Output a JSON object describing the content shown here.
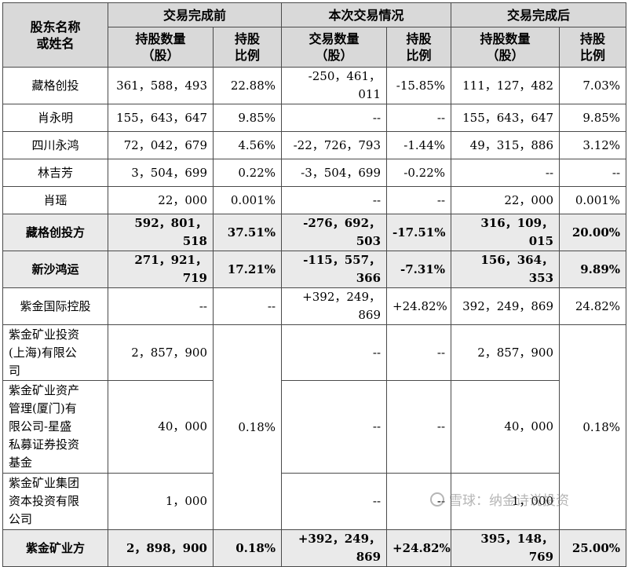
{
  "headers": {
    "name": "股东名称\n或姓名",
    "before": "交易完成前",
    "during": "本次交易情况",
    "after": "交易完成后",
    "before_qty": "持股数量\n（股）",
    "before_ratio": "持股\n比例",
    "during_qty": "交易数量\n（股）",
    "during_ratio": "持股\n比例",
    "after_qty": "持股数量\n（股）",
    "after_ratio": "持股\n比例"
  },
  "rows": [
    {
      "name": "藏格创投",
      "bq": "361，588，493",
      "br": "22.88%",
      "dq": "-250，461，011",
      "dr": "-15.85%",
      "aq": "111，127，482",
      "ar": "7.03%"
    },
    {
      "name": "肖永明",
      "bq": "155，643，647",
      "br": "9.85%",
      "dq": "--",
      "dr": "--",
      "aq": "155，643，647",
      "ar": "9.85%"
    },
    {
      "name": "四川永鸿",
      "bq": "72，042，679",
      "br": "4.56%",
      "dq": "-22，726，793",
      "dr": "-1.44%",
      "aq": "49，315，886",
      "ar": "3.12%"
    },
    {
      "name": "林吉芳",
      "bq": "3，504，699",
      "br": "0.22%",
      "dq": "-3，504，699",
      "dr": "-0.22%",
      "aq": "--",
      "ar": "--"
    },
    {
      "name": "肖瑶",
      "bq": "22，000",
      "br": "0.001%",
      "dq": "--",
      "dr": "--",
      "aq": "22，000",
      "ar": "0.001%"
    },
    {
      "name": "藏格创投方",
      "bq": "592，801，518",
      "br": "37.51%",
      "dq": "-276，692，503",
      "dr": "-17.51%",
      "aq": "316，109，015",
      "ar": "20.00%"
    },
    {
      "name": "新沙鸿运",
      "bq": "271，921，719",
      "br": "17.21%",
      "dq": "-115，557，366",
      "dr": "-7.31%",
      "aq": "156，364，353",
      "ar": "9.89%"
    },
    {
      "name": "紫金国际控股",
      "bq": "--",
      "br": "--",
      "dq": "+392，249，869",
      "dr": "+24.82%",
      "aq": "392，249，869",
      "ar": "24.82%"
    }
  ],
  "zijin": {
    "r1": {
      "name": "紫金矿业投资\n(上海)有限公\n司",
      "bq": "2，857，900",
      "dq": "--",
      "dr": "--",
      "aq": "2，857，900"
    },
    "r2": {
      "name": "紫金矿业资产\n管理(厦门)有\n限公司-星盛\n私募证券投资\n基金",
      "bq": "40，000",
      "dq": "--",
      "dr": "--",
      "aq": "40，000"
    },
    "r3": {
      "name": "紫金矿业集团\n资本投资有限\n公司",
      "bq": "1，000",
      "dq": "--",
      "dr": "--",
      "aq": "1，000"
    },
    "merged_br": "0.18%",
    "merged_ar": "0.18%"
  },
  "total": {
    "name": "紫金矿业方",
    "bq": "2，898，900",
    "br": "0.18%",
    "dq": "+392，249，869",
    "dr": "+24.82%",
    "aq": "395，148，769",
    "ar": "25.00%"
  },
  "watermark": {
    "text": "雪球：纳金诗说投资"
  }
}
